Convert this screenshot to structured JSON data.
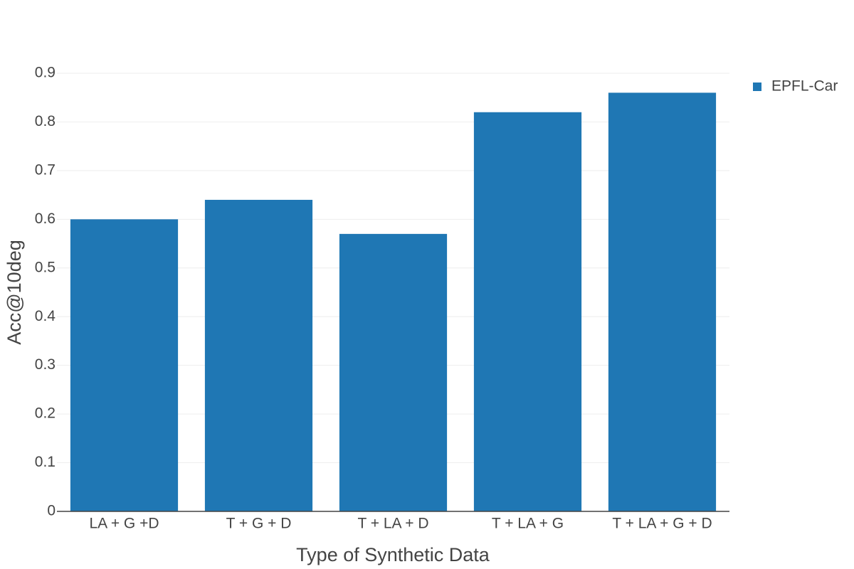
{
  "chart_data": {
    "type": "bar",
    "x_label": "Type of Synthetic Data",
    "y_label": "Acc@10deg",
    "categories": [
      "LA + G +D",
      "T + G + D",
      "T + LA + D",
      "T + LA + G",
      "T + LA + G + D"
    ],
    "series": [
      {
        "name": "EPFL-Car",
        "color": "#1f77b4",
        "values": [
          0.6,
          0.64,
          0.57,
          0.82,
          0.86
        ]
      }
    ],
    "ylim": [
      0,
      0.9
    ],
    "yticks": [
      0,
      0.1,
      0.2,
      0.3,
      0.4,
      0.5,
      0.6,
      0.7,
      0.8,
      0.9
    ],
    "grid": true
  }
}
